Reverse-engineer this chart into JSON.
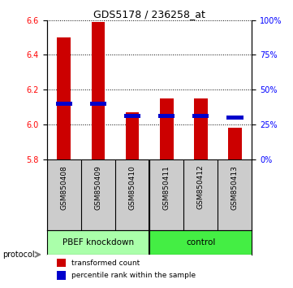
{
  "title": "GDS5178 / 236258_at",
  "samples": [
    "GSM850408",
    "GSM850409",
    "GSM850410",
    "GSM850411",
    "GSM850412",
    "GSM850413"
  ],
  "bar_bottom": 5.8,
  "red_values": [
    6.5,
    6.59,
    6.07,
    6.15,
    6.15,
    5.98
  ],
  "blue_values": [
    6.12,
    6.12,
    6.05,
    6.05,
    6.05,
    6.04
  ],
  "ylim_left": [
    5.8,
    6.6
  ],
  "ylim_right": [
    0,
    100
  ],
  "yticks_left": [
    5.8,
    6.0,
    6.2,
    6.4,
    6.6
  ],
  "yticks_right": [
    0,
    25,
    50,
    75,
    100
  ],
  "bar_color": "#CC0000",
  "dot_color": "#0000CC",
  "bg_color": "#FFFFFF",
  "plot_bg": "#FFFFFF",
  "sample_bg": "#CCCCCC",
  "group1_bg": "#AAFFAA",
  "group2_bg": "#44EE44",
  "bar_width": 0.4,
  "group1_label": "PBEF knockdown",
  "group2_label": "control",
  "protocol_label": "protocol",
  "legend1": "transformed count",
  "legend2": "percentile rank within the sample"
}
